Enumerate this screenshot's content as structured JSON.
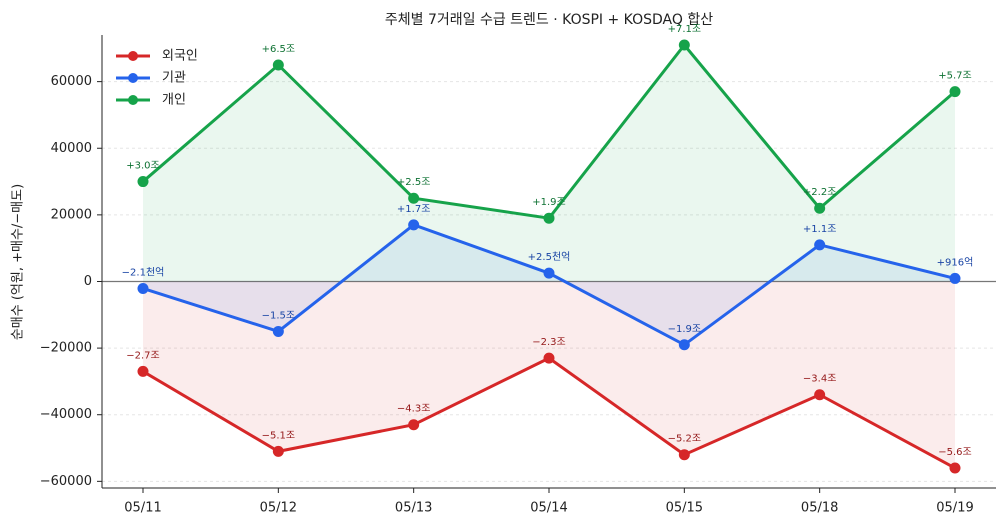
{
  "chart_data": {
    "type": "line",
    "title": "주체별 7거래일 수급 트렌드 · KOSPI + KOSDAQ 합산",
    "y_label": "순매수 (억원, +매수/−매도)",
    "categories": [
      "05/11",
      "05/12",
      "05/13",
      "05/14",
      "05/15",
      "05/18",
      "05/19"
    ],
    "series": [
      {
        "name": "외국인",
        "color": "#d62728",
        "values": [
          -27000,
          -51000,
          -43000,
          -23000,
          -52000,
          -34000,
          -56000
        ],
        "value_labels": [
          "−2.7조",
          "−5.1조",
          "−4.3조",
          "−2.3조",
          "−5.2조",
          "−3.4조",
          "−5.6조"
        ]
      },
      {
        "name": "기관",
        "color": "#2563eb",
        "values": [
          -2100,
          -15000,
          17000,
          2500,
          -19000,
          11000,
          916
        ],
        "value_labels": [
          "−2.1천억",
          "−1.5조",
          "+1.7조",
          "+2.5천억",
          "−1.9조",
          "+1.1조",
          "+916억"
        ]
      },
      {
        "name": "개인",
        "color": "#16a34a",
        "values": [
          30000,
          65000,
          25000,
          19000,
          71000,
          22000,
          57000
        ],
        "value_labels": [
          "+3.0조",
          "+6.5조",
          "+2.5조",
          "+1.9조",
          "+7.1조",
          "+2.2조",
          "+5.7조"
        ]
      }
    ],
    "ylim": [
      -62000,
      74000
    ],
    "yticks": [
      {
        "value": -60000,
        "label": "−60000"
      },
      {
        "value": -40000,
        "label": "−40000"
      },
      {
        "value": -20000,
        "label": "−20000"
      },
      0,
      20000,
      40000,
      60000
    ],
    "grid": true,
    "legend": "upper left"
  }
}
